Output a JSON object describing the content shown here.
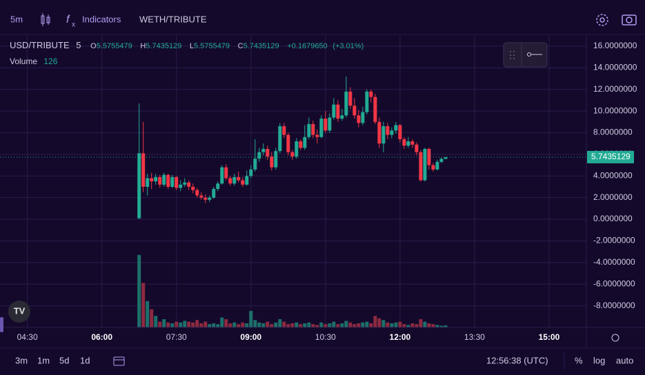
{
  "toolbar": {
    "interval": "5m",
    "indicators": "Indicators",
    "symbol": "WETH/TRIBUTE"
  },
  "legend": {
    "interval": "5",
    "o": "O",
    "h": "H",
    "l": "L",
    "c": "C",
    "change": "+0.1679650",
    "change_pct": "(+3.01%)",
    "volume_label": "Volume"
  },
  "footer": {
    "ranges": [
      "3m",
      "1m",
      "5d",
      "1d"
    ],
    "clock": "12:56:38 (UTC)",
    "options": [
      "%",
      "log",
      "auto"
    ]
  },
  "chart_data": {
    "type": "candlestick",
    "title": "USD/TRIBUTE",
    "x": [
      "06:45",
      "06:50",
      "06:55",
      "07:00",
      "07:05",
      "07:10",
      "07:15",
      "07:20",
      "07:25",
      "07:30",
      "07:35",
      "07:40",
      "07:45",
      "07:50",
      "07:55",
      "08:00",
      "08:05",
      "08:10",
      "08:15",
      "08:20",
      "08:25",
      "08:30",
      "08:35",
      "08:40",
      "08:45",
      "08:50",
      "08:55",
      "09:00",
      "09:05",
      "09:10",
      "09:15",
      "09:20",
      "09:25",
      "09:30",
      "09:35",
      "09:40",
      "09:45",
      "09:50",
      "09:55",
      "10:00",
      "10:05",
      "10:10",
      "10:15",
      "10:20",
      "10:25",
      "10:30",
      "10:35",
      "10:40",
      "10:45",
      "10:50",
      "10:55",
      "11:00",
      "11:05",
      "11:10",
      "11:15",
      "11:20",
      "11:25",
      "11:30",
      "11:35",
      "11:40",
      "11:45",
      "11:50",
      "11:55",
      "12:00",
      "12:05",
      "12:10",
      "12:15",
      "12:20",
      "12:25",
      "12:30",
      "12:35",
      "12:40",
      "12:45",
      "12:50",
      "12:55"
    ],
    "open": [
      0.1,
      6.1,
      3.0,
      3.8,
      3.5,
      3.9,
      3.2,
      4.1,
      3.0,
      3.9,
      2.9,
      3.2,
      3.4,
      3.0,
      2.7,
      2.2,
      2.0,
      1.8,
      2.0,
      2.8,
      3.3,
      4.8,
      3.8,
      3.3,
      3.9,
      3.6,
      3.2,
      4.0,
      4.6,
      5.6,
      6.2,
      6.5,
      5.8,
      4.8,
      6.3,
      8.6,
      7.8,
      6.2,
      5.8,
      7.2,
      6.6,
      7.6,
      8.8,
      7.8,
      7.6,
      9.3,
      8.2,
      9.4,
      10.6,
      9.3,
      9.6,
      11.8,
      10.5,
      9.6,
      8.9,
      9.9,
      11.8,
      11.3,
      9.0,
      7.0,
      8.6,
      7.8,
      8.2,
      8.7,
      7.4,
      6.8,
      7.2,
      6.9,
      6.2,
      3.6,
      6.5,
      5.0,
      4.6,
      5.3,
      5.5755479
    ],
    "high": [
      10.7,
      9.0,
      4.2,
      4.3,
      4.2,
      4.1,
      4.3,
      4.2,
      4.1,
      4.0,
      3.6,
      3.8,
      3.6,
      3.3,
      2.9,
      2.5,
      2.3,
      2.2,
      3.0,
      3.5,
      5.0,
      5.1,
      4.0,
      4.2,
      4.4,
      3.9,
      4.5,
      5.0,
      7.4,
      6.6,
      7.0,
      6.8,
      6.2,
      6.6,
      8.9,
      8.9,
      8.0,
      6.4,
      7.5,
      7.4,
      8.7,
      9.4,
      9.1,
      8.3,
      9.6,
      10.0,
      9.8,
      11.2,
      11.0,
      10.2,
      13.2,
      12.2,
      11.2,
      10.1,
      10.4,
      12.0,
      12.0,
      11.6,
      9.4,
      9.0,
      8.9,
      8.5,
      9.0,
      8.8,
      7.6,
      7.6,
      7.4,
      7.1,
      6.4,
      6.6,
      6.6,
      5.2,
      5.5,
      5.7,
      5.7435129
    ],
    "low": [
      0.0,
      2.5,
      2.2,
      2.8,
      3.2,
      2.9,
      3.0,
      2.8,
      2.9,
      2.7,
      2.6,
      3.0,
      2.7,
      2.4,
      2.0,
      1.8,
      1.5,
      1.6,
      1.9,
      2.6,
      3.2,
      3.6,
      3.1,
      3.1,
      3.4,
      3.0,
      3.1,
      3.8,
      4.4,
      5.3,
      5.9,
      5.5,
      4.5,
      4.6,
      6.1,
      7.5,
      5.9,
      5.5,
      5.6,
      6.4,
      6.4,
      7.4,
      7.5,
      7.0,
      7.5,
      8.0,
      8.0,
      9.2,
      9.0,
      9.1,
      9.4,
      10.2,
      9.3,
      8.5,
      8.7,
      9.7,
      10.8,
      8.8,
      6.6,
      6.2,
      7.4,
      7.5,
      7.9,
      7.1,
      6.5,
      6.6,
      6.6,
      5.9,
      3.5,
      3.5,
      4.6,
      4.4,
      4.5,
      5.2,
      5.5755479
    ],
    "close": [
      6.1,
      3.0,
      3.8,
      3.5,
      3.9,
      3.2,
      4.1,
      3.0,
      3.9,
      2.9,
      3.2,
      3.4,
      3.0,
      2.7,
      2.2,
      2.0,
      1.8,
      2.0,
      2.8,
      3.3,
      4.8,
      3.8,
      3.3,
      3.9,
      3.6,
      3.2,
      4.0,
      4.6,
      5.6,
      6.2,
      6.5,
      5.8,
      4.8,
      6.3,
      8.6,
      7.8,
      6.2,
      5.8,
      7.2,
      6.6,
      7.6,
      8.8,
      7.8,
      7.6,
      9.3,
      8.2,
      9.4,
      10.6,
      9.3,
      9.6,
      11.8,
      10.5,
      9.6,
      8.9,
      9.9,
      11.8,
      11.3,
      9.0,
      7.0,
      8.6,
      7.8,
      8.2,
      8.7,
      7.4,
      6.8,
      7.2,
      6.9,
      6.2,
      3.6,
      6.5,
      5.0,
      4.6,
      5.3,
      5.58,
      5.7435129
    ],
    "volume": [
      4400,
      2700,
      1600,
      1100,
      700,
      350,
      500,
      300,
      250,
      350,
      300,
      400,
      350,
      300,
      450,
      250,
      350,
      200,
      250,
      200,
      600,
      500,
      250,
      300,
      200,
      300,
      250,
      1000,
      450,
      300,
      250,
      350,
      200,
      300,
      500,
      350,
      200,
      250,
      300,
      200,
      250,
      300,
      200,
      150,
      300,
      200,
      250,
      350,
      200,
      250,
      400,
      300,
      200,
      250,
      300,
      350,
      250,
      700,
      550,
      450,
      300,
      250,
      300,
      350,
      200,
      150,
      250,
      200,
      500,
      350,
      250,
      200,
      150,
      100,
      126
    ],
    "up_color": "#22ab94",
    "down_color": "#f23645",
    "up_volume_color": "#1d6f6a",
    "down_volume_color": "#8c2a40",
    "xlim": [
      "03:57",
      "15:45"
    ],
    "xticks": [
      "04:30",
      "06:00",
      "07:30",
      "09:00",
      "10:30",
      "12:00",
      "13:30",
      "15:00"
    ],
    "ylim": [
      -10,
      17.08
    ],
    "yticks": [
      {
        "value": 16,
        "label": "16.0000000"
      },
      {
        "value": 14,
        "label": "14.0000000"
      },
      {
        "value": 12,
        "label": "12.0000000"
      },
      {
        "value": 10,
        "label": "10.0000000"
      },
      {
        "value": 8,
        "label": "8.0000000"
      },
      {
        "value": 6,
        "label": "6.0000000"
      },
      {
        "value": 4,
        "label": "4.0000000"
      },
      {
        "value": 2,
        "label": "2.0000000"
      },
      {
        "value": 0,
        "label": "0.0000000"
      },
      {
        "value": -2,
        "label": "-2.0000000"
      },
      {
        "value": -4,
        "label": "-4.0000000"
      },
      {
        "value": -6,
        "label": "-6.0000000"
      },
      {
        "value": -8,
        "label": "-8.0000000"
      }
    ],
    "volume_ylim": [
      0,
      4600
    ],
    "grid": true
  }
}
